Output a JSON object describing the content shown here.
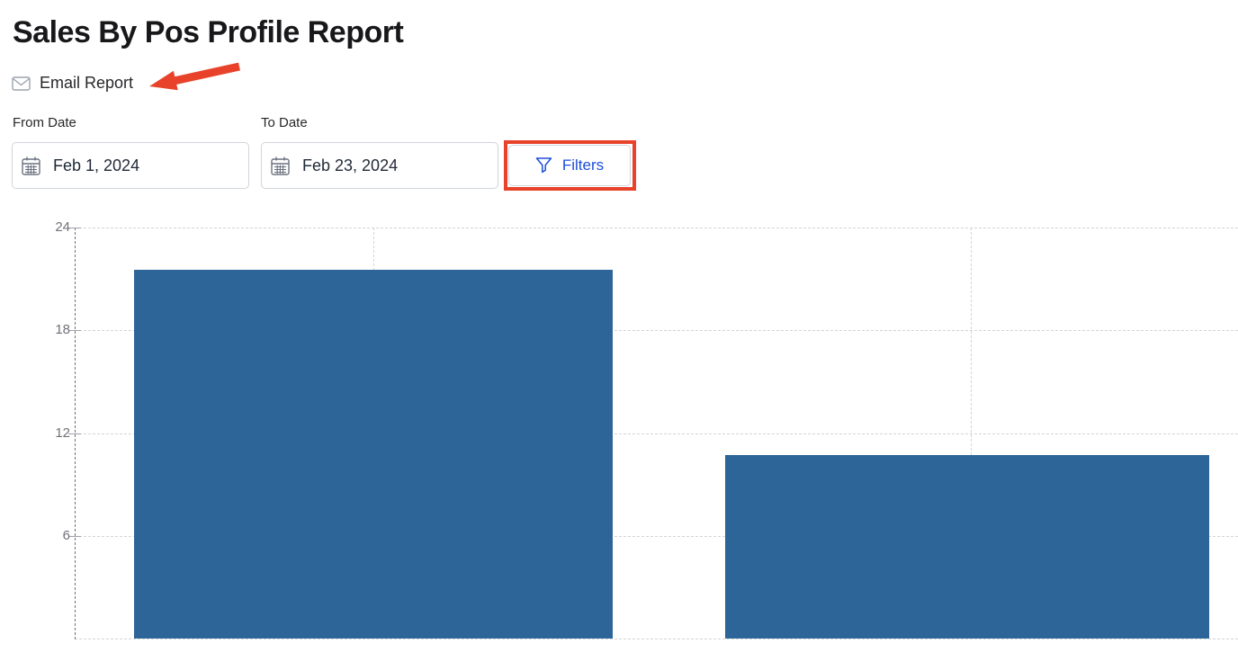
{
  "page": {
    "title": "Sales By Pos Profile Report"
  },
  "actions": {
    "email_report_label": "Email Report"
  },
  "filters": {
    "from_date": {
      "label": "From Date",
      "value": "Feb 1, 2024"
    },
    "to_date": {
      "label": "To Date",
      "value": "Feb 23, 2024"
    },
    "filters_button_label": "Filters"
  },
  "icons": {
    "email": "envelope-icon",
    "from_date": "calendar-icon",
    "to_date": "calendar-icon",
    "filters": "funnel-icon"
  },
  "annotations": {
    "arrow": "red arrow pointing at Email Report",
    "box": "red rectangle highlighting Filters button",
    "color": "#e8432a"
  },
  "colors": {
    "bar_blue": "#2d6599",
    "annotation_red": "#e8432a",
    "filters_link_blue": "#1d4ed8",
    "title_text": "#18181b",
    "input_border": "#d1d5db",
    "grid_gray": "#d4d4d8",
    "axis_gray": "#737373",
    "tick_label_gray": "#71717a",
    "icon_gray": "#9ca3af"
  },
  "chart_data": {
    "type": "bar",
    "title": "",
    "xlabel": "",
    "ylabel": "",
    "categories": [
      "",
      ""
    ],
    "values": [
      21.5,
      10.7
    ],
    "yticks": [
      6,
      12,
      18,
      24
    ],
    "ylim": [
      0,
      24
    ],
    "grid": true,
    "grid_style": "dashed",
    "legend": false,
    "bar_color": "#2d6599"
  }
}
